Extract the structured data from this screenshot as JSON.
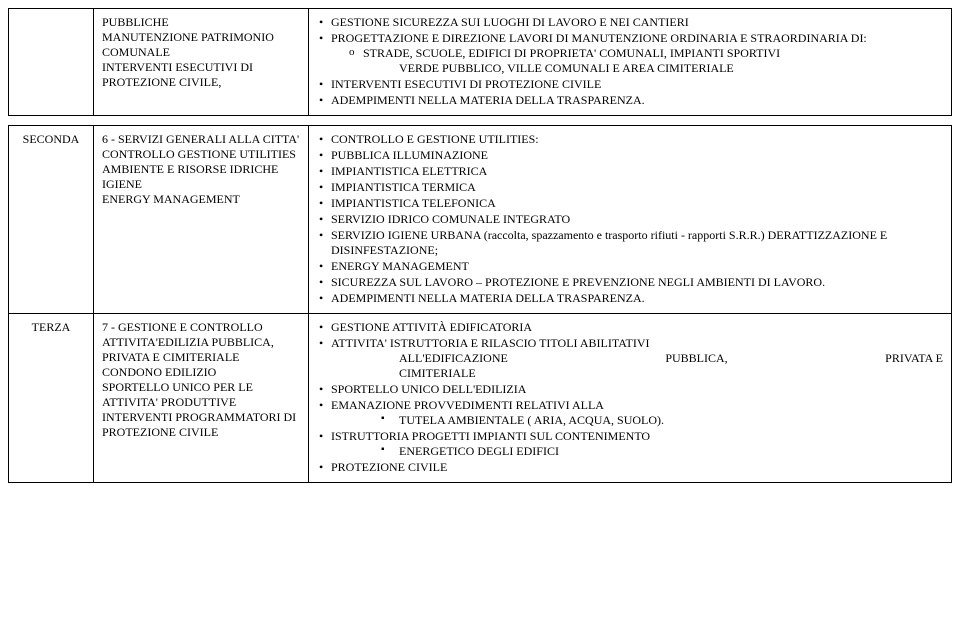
{
  "rows": [
    {
      "col1": "",
      "col2_lines": [
        "PUBBLICHE",
        "MANUTENZIONE PATRIMONIO COMUNALE",
        "INTERVENTI ESECUTIVI DI PROTEZIONE CIVILE,"
      ],
      "col3": {
        "bullets": [
          {
            "text": "GESTIONE SICUREZZA SUI LUOGHI DI LAVORO E NEI CANTIERI"
          },
          {
            "text": "PROGETTAZIONE E DIREZIONE LAVORI DI MANUTENZIONE ORDINARIA E STRAORDINARIA DI:",
            "sub_o": [
              "STRADE, SCUOLE, EDIFICI DI PROPRIETA' COMUNALI, IMPIANTI SPORTIVI"
            ],
            "indent_cont": [
              "VERDE PUBBLICO, VILLE COMUNALI E AREA CIMITERIALE"
            ]
          },
          {
            "text": "INTERVENTI ESECUTIVI DI PROTEZIONE CIVILE"
          },
          {
            "text": "ADEMPIMENTI NELLA MATERIA DELLA TRASPARENZA."
          }
        ]
      }
    },
    {
      "col1": "SECONDA",
      "col2_lines": [
        "6 - SERVIZI GENERALI ALLA CITTA'",
        "CONTROLLO GESTIONE UTILITIES",
        "AMBIENTE E RISORSE IDRICHE",
        "IGIENE",
        "ENERGY MANAGEMENT"
      ],
      "col3": {
        "bullets": [
          {
            "text": "CONTROLLO E GESTIONE UTILITIES:"
          },
          {
            "text": "PUBBLICA ILLUMINAZIONE"
          },
          {
            "text": "IMPIANTISTICA ELETTRICA"
          },
          {
            "text": "IMPIANTISTICA TERMICA"
          },
          {
            "text": "IMPIANTISTICA TELEFONICA"
          },
          {
            "text": "SERVIZIO IDRICO COMUNALE INTEGRATO"
          },
          {
            "text": "SERVIZIO IGIENE URBANA (raccolta, spazzamento e trasporto rifiuti -  rapporti S.R.R.) DERATTIZZAZIONE E DISINFESTAZIONE;"
          },
          {
            "text": "ENERGY MANAGEMENT"
          },
          {
            "text": "SICUREZZA SUL LAVORO – PROTEZIONE E PREVENZIONE NEGLI AMBIENTI DI LAVORO."
          },
          {
            "text": "ADEMPIMENTI NELLA MATERIA DELLA TRASPARENZA."
          }
        ]
      }
    },
    {
      "col1": "TERZA",
      "col2_lines": [
        "7 - GESTIONE E CONTROLLO ATTIVITA'EDILIZIA PUBBLICA, PRIVATA E CIMITERIALE",
        "CONDONO EDILIZIO",
        "SPORTELLO UNICO PER LE ATTIVITA' PRODUTTIVE",
        "INTERVENTI PROGRAMMATORI DI PROTEZIONE CIVILE"
      ],
      "col3": {
        "bullets": [
          {
            "text": "GESTIONE ATTIVITÀ EDIFICATORIA"
          },
          {
            "text": "ATTIVITA' ISTRUTTORIA E RILASCIO TITOLI ABILITATIVI",
            "indent_just": [
              {
                "left": "ALL'EDIFICAZIONE",
                "mid": "PUBBLICA,",
                "right": "PRIVATA      E"
              },
              {
                "left": "CIMITERIALE",
                "mid": "",
                "right": ""
              }
            ]
          },
          {
            "text": "SPORTELLO UNICO DELL'EDILIZIA"
          },
          {
            "text": "EMANAZIONE PROVVEDIMENTI RELATIVI ALLA",
            "sub_sq": [
              "TUTELA AMBIENTALE ( ARIA, ACQUA, SUOLO)."
            ]
          },
          {
            "text": "ISTRUTTORIA PROGETTI IMPIANTI SUL CONTENIMENTO",
            "sub_sq": [
              "ENERGETICO DEGLI EDIFICI"
            ]
          },
          {
            "text": "PROTEZIONE CIVILE"
          }
        ]
      }
    }
  ]
}
